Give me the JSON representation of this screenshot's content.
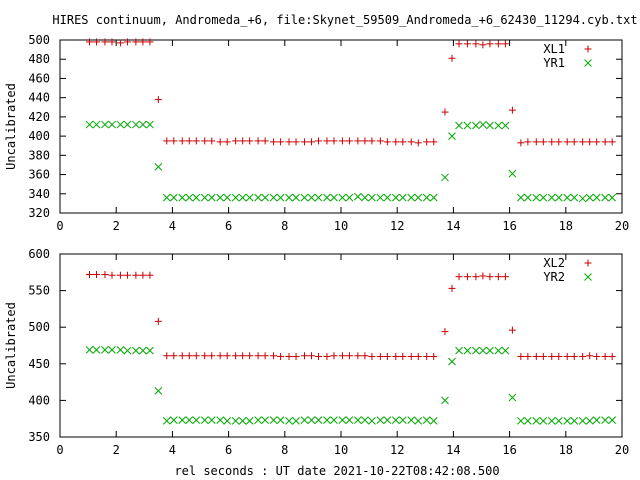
{
  "title": "HIRES continuum, Andromeda_+6, file:Skynet_59509_Andromeda_+6_62430_11294.cyb.txt",
  "xlabel": "rel seconds : UT date 2021-10-22T08:42:08.500",
  "colors": {
    "red": "#cc0000",
    "green": "#00aa00"
  },
  "chart_data": [
    {
      "type": "scatter",
      "ylabel": "Uncalibrated",
      "xlim": [
        0,
        20
      ],
      "ylim": [
        320,
        500
      ],
      "xticks": [
        "0",
        "2",
        "4",
        "6",
        "8",
        "10",
        "12",
        "14",
        "16",
        "18",
        "20"
      ],
      "yticks": [
        "320",
        "340",
        "360",
        "380",
        "400",
        "420",
        "440",
        "460",
        "480",
        "500"
      ],
      "legend_position": "top-right",
      "series": [
        {
          "name": "XL1",
          "marker": "plus",
          "color": "#cc0000",
          "x": [
            1.05,
            1.3,
            1.6,
            1.85,
            2.15,
            2.4,
            2.7,
            2.95,
            3.2,
            3.5,
            3.8,
            4.05,
            4.35,
            4.6,
            4.85,
            5.15,
            5.4,
            5.7,
            5.95,
            6.25,
            6.5,
            6.75,
            7.05,
            7.3,
            7.6,
            7.85,
            8.15,
            8.4,
            8.7,
            8.95,
            9.2,
            9.5,
            9.75,
            10.05,
            10.3,
            10.6,
            10.85,
            11.1,
            11.4,
            11.65,
            11.95,
            12.2,
            12.5,
            12.75,
            13.05,
            13.3,
            13.7,
            13.95,
            14.2,
            14.5,
            14.8,
            15.05,
            15.3,
            15.6,
            15.85,
            16.1,
            16.4,
            16.65,
            16.95,
            17.2,
            17.5,
            17.75,
            18.05,
            18.3,
            18.6,
            18.85,
            19.1,
            19.4,
            19.65
          ],
          "y": [
            498,
            498,
            498,
            498,
            497,
            498,
            498,
            498,
            498,
            438,
            395,
            395,
            395,
            395,
            395,
            395,
            395,
            394,
            394,
            395,
            395,
            395,
            395,
            395,
            394,
            394,
            394,
            394,
            394,
            394,
            395,
            395,
            395,
            395,
            395,
            395,
            395,
            395,
            395,
            394,
            394,
            394,
            394,
            393,
            394,
            394,
            425,
            481,
            496,
            496,
            496,
            495,
            496,
            496,
            496,
            427,
            393,
            394,
            394,
            394,
            394,
            394,
            394,
            394,
            394,
            394,
            394,
            394,
            394
          ]
        },
        {
          "name": "YR1",
          "marker": "cross",
          "color": "#00aa00",
          "x": [
            1.05,
            1.3,
            1.6,
            1.85,
            2.15,
            2.4,
            2.7,
            2.95,
            3.2,
            3.5,
            3.8,
            4.05,
            4.35,
            4.6,
            4.85,
            5.15,
            5.4,
            5.7,
            5.95,
            6.25,
            6.5,
            6.75,
            7.05,
            7.3,
            7.6,
            7.85,
            8.15,
            8.4,
            8.7,
            8.95,
            9.2,
            9.5,
            9.75,
            10.05,
            10.3,
            10.6,
            10.85,
            11.1,
            11.4,
            11.65,
            11.95,
            12.2,
            12.5,
            12.75,
            13.05,
            13.3,
            13.7,
            13.95,
            14.2,
            14.5,
            14.8,
            15.05,
            15.3,
            15.6,
            15.85,
            16.1,
            16.4,
            16.65,
            16.95,
            17.2,
            17.5,
            17.75,
            18.05,
            18.3,
            18.6,
            18.85,
            19.1,
            19.4,
            19.65
          ],
          "y": [
            412,
            412,
            412,
            412,
            412,
            412,
            412,
            412,
            412,
            368,
            336,
            336,
            336,
            336,
            336,
            336,
            336,
            336,
            336,
            336,
            336,
            336,
            336,
            336,
            336,
            336,
            336,
            336,
            336,
            336,
            336,
            336,
            336,
            336,
            336,
            337,
            336,
            336,
            336,
            336,
            336,
            336,
            336,
            336,
            336,
            336,
            357,
            400,
            411,
            411,
            411,
            412,
            411,
            411,
            411,
            361,
            336,
            336,
            336,
            336,
            336,
            336,
            336,
            336,
            335,
            336,
            336,
            336,
            336
          ]
        }
      ]
    },
    {
      "type": "scatter",
      "ylabel": "Uncalibrated",
      "xlim": [
        0,
        20
      ],
      "ylim": [
        350,
        600
      ],
      "xticks": [
        "0",
        "2",
        "4",
        "6",
        "8",
        "10",
        "12",
        "14",
        "16",
        "18",
        "20"
      ],
      "yticks": [
        "350",
        "400",
        "450",
        "500",
        "550",
        "600"
      ],
      "legend_position": "top-right",
      "series": [
        {
          "name": "XL2",
          "marker": "plus",
          "color": "#cc0000",
          "x": [
            1.05,
            1.3,
            1.6,
            1.85,
            2.15,
            2.4,
            2.7,
            2.95,
            3.2,
            3.5,
            3.8,
            4.05,
            4.35,
            4.6,
            4.85,
            5.15,
            5.4,
            5.7,
            5.95,
            6.25,
            6.5,
            6.75,
            7.05,
            7.3,
            7.6,
            7.85,
            8.15,
            8.4,
            8.7,
            8.95,
            9.2,
            9.5,
            9.75,
            10.05,
            10.3,
            10.6,
            10.85,
            11.1,
            11.4,
            11.65,
            11.95,
            12.2,
            12.5,
            12.75,
            13.05,
            13.3,
            13.7,
            13.95,
            14.2,
            14.5,
            14.8,
            15.05,
            15.3,
            15.6,
            15.85,
            16.1,
            16.4,
            16.65,
            16.95,
            17.2,
            17.5,
            17.75,
            18.05,
            18.3,
            18.6,
            18.85,
            19.1,
            19.4,
            19.65
          ],
          "y": [
            572,
            572,
            572,
            571,
            571,
            571,
            571,
            571,
            571,
            508,
            461,
            461,
            461,
            461,
            461,
            461,
            461,
            461,
            461,
            461,
            461,
            461,
            461,
            461,
            461,
            460,
            460,
            460,
            461,
            461,
            460,
            460,
            461,
            461,
            461,
            461,
            461,
            460,
            460,
            460,
            460,
            460,
            460,
            460,
            460,
            460,
            494,
            553,
            569,
            569,
            569,
            570,
            569,
            569,
            569,
            496,
            460,
            460,
            460,
            460,
            460,
            460,
            460,
            460,
            460,
            461,
            460,
            460,
            460
          ]
        },
        {
          "name": "YR2",
          "marker": "cross",
          "color": "#00aa00",
          "x": [
            1.05,
            1.3,
            1.6,
            1.85,
            2.15,
            2.4,
            2.7,
            2.95,
            3.2,
            3.5,
            3.8,
            4.05,
            4.35,
            4.6,
            4.85,
            5.15,
            5.4,
            5.7,
            5.95,
            6.25,
            6.5,
            6.75,
            7.05,
            7.3,
            7.6,
            7.85,
            8.15,
            8.4,
            8.7,
            8.95,
            9.2,
            9.5,
            9.75,
            10.05,
            10.3,
            10.6,
            10.85,
            11.1,
            11.4,
            11.65,
            11.95,
            12.2,
            12.5,
            12.75,
            13.05,
            13.3,
            13.7,
            13.95,
            14.2,
            14.5,
            14.8,
            15.05,
            15.3,
            15.6,
            15.85,
            16.1,
            16.4,
            16.65,
            16.95,
            17.2,
            17.5,
            17.75,
            18.05,
            18.3,
            18.6,
            18.85,
            19.1,
            19.4,
            19.65
          ],
          "y": [
            469,
            469,
            469,
            469,
            469,
            468,
            468,
            468,
            468,
            413,
            372,
            373,
            373,
            373,
            373,
            373,
            373,
            373,
            372,
            372,
            372,
            372,
            373,
            373,
            373,
            373,
            372,
            372,
            373,
            373,
            373,
            373,
            373,
            373,
            373,
            373,
            373,
            372,
            373,
            373,
            373,
            373,
            373,
            372,
            373,
            372,
            400,
            453,
            468,
            468,
            468,
            468,
            468,
            468,
            468,
            404,
            372,
            372,
            372,
            372,
            372,
            372,
            372,
            372,
            372,
            372,
            373,
            373,
            373
          ]
        }
      ]
    }
  ]
}
